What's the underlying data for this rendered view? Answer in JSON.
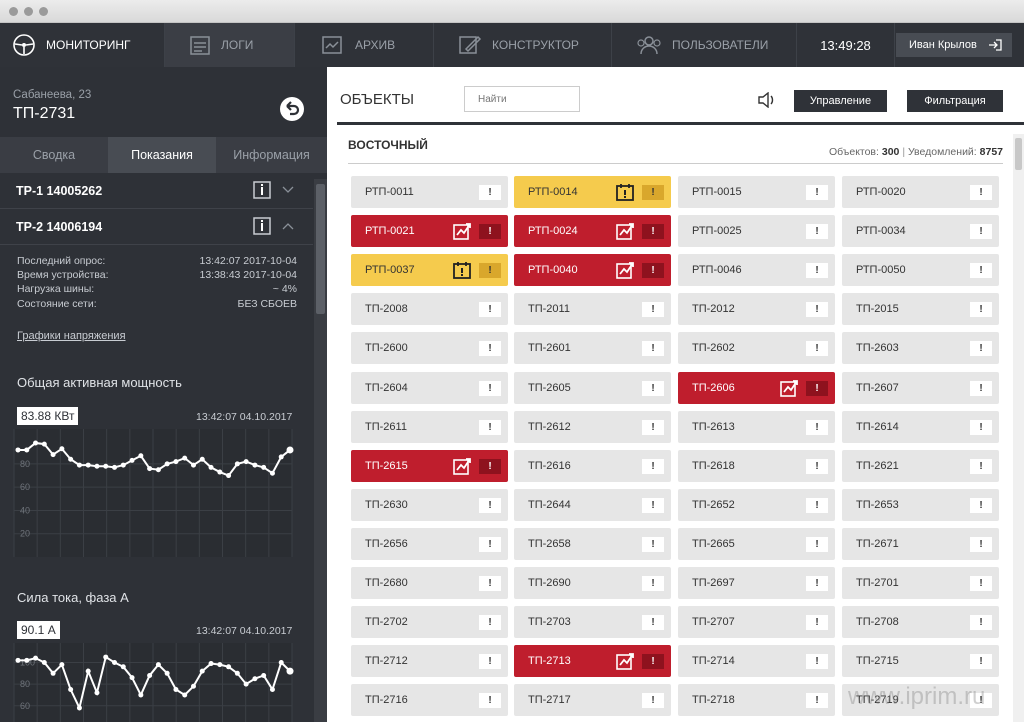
{
  "nav": {
    "monitoring": "МОНИТОРИНГ",
    "logs": "ЛОГИ",
    "archive": "АРХИВ",
    "constructor": "КОНСТРУКТОР",
    "users": "ПОЛЬЗОВАТЕЛИ",
    "time": "13:49:28",
    "user": "Иван Крылов"
  },
  "sidebar": {
    "address": "Сабанеева, 23",
    "tp": "ТП-2731",
    "tabs": [
      "Сводка",
      "Показания",
      "Информация"
    ],
    "tp1": "ТР-1 14005262",
    "tp2": "ТР-2 14006194",
    "info": [
      {
        "k": "Последний опрос:",
        "v": "13:42:07 2017-10-04"
      },
      {
        "k": "Время устройства:",
        "v": "13:38:43 2017-10-04"
      },
      {
        "k": "Нагрузка шины:",
        "v": "~ 4%"
      },
      {
        "k": "Состояние сети:",
        "v": "БЕЗ СБОЕВ"
      }
    ],
    "voltage_link": "Графики напряжения",
    "charts": [
      {
        "title": "Общая активная мощность",
        "value": "83.88 КВт",
        "time": "13:42:07 04.10.2017",
        "yticks": [
          "80",
          "60",
          "40",
          "20"
        ],
        "y": [
          92,
          92,
          98,
          97,
          88,
          93,
          84,
          79,
          79,
          78,
          78,
          77,
          79,
          83,
          87,
          76,
          75,
          80,
          82,
          85,
          79,
          84,
          77,
          73,
          70,
          80,
          82,
          79,
          77,
          72,
          86,
          92
        ]
      },
      {
        "title": "Сила тока, фаза А",
        "value": "90.1 А",
        "time": "13:42:07 04.10.2017",
        "yticks": [
          "100",
          "80",
          "60"
        ],
        "y": [
          102,
          102,
          104,
          100,
          90,
          98,
          75,
          58,
          92,
          72,
          105,
          100,
          96,
          86,
          70,
          88,
          98,
          90,
          75,
          70,
          78,
          92,
          99,
          98,
          96,
          90,
          80,
          85,
          88,
          75,
          100,
          92
        ]
      }
    ]
  },
  "main": {
    "title": "ОБЪЕКТЫ",
    "search_placeholder": "Найти",
    "btn_manage": "Управление",
    "btn_filter": "Фильтрация",
    "section": "ВОСТОЧНЫЙ",
    "objects_label": "Объектов:",
    "objects_count": "300",
    "notif_label": "Уведомлений:",
    "notif_count": "8757",
    "cells": [
      [
        "РТП-0011",
        "n"
      ],
      [
        "РТП-0014",
        "y"
      ],
      [
        "РТП-0015",
        "n"
      ],
      [
        "РТП-0020",
        "n"
      ],
      [
        "РТП-0021",
        "r"
      ],
      [
        "РТП-0024",
        "r"
      ],
      [
        "РТП-0025",
        "n"
      ],
      [
        "РТП-0034",
        "n"
      ],
      [
        "РТП-0037",
        "y"
      ],
      [
        "РТП-0040",
        "r"
      ],
      [
        "РТП-0046",
        "n"
      ],
      [
        "РТП-0050",
        "n"
      ],
      [
        "ТП-2008",
        "n"
      ],
      [
        "ТП-2011",
        "n"
      ],
      [
        "ТП-2012",
        "n"
      ],
      [
        "ТП-2015",
        "n"
      ],
      [
        "ТП-2600",
        "n"
      ],
      [
        "ТП-2601",
        "n"
      ],
      [
        "ТП-2602",
        "n"
      ],
      [
        "ТП-2603",
        "n"
      ],
      [
        "ТП-2604",
        "n"
      ],
      [
        "ТП-2605",
        "n"
      ],
      [
        "ТП-2606",
        "r"
      ],
      [
        "ТП-2607",
        "n"
      ],
      [
        "ТП-2611",
        "n"
      ],
      [
        "ТП-2612",
        "n"
      ],
      [
        "ТП-2613",
        "n"
      ],
      [
        "ТП-2614",
        "n"
      ],
      [
        "ТП-2615",
        "r"
      ],
      [
        "ТП-2616",
        "n"
      ],
      [
        "ТП-2618",
        "n"
      ],
      [
        "ТП-2621",
        "n"
      ],
      [
        "ТП-2630",
        "n"
      ],
      [
        "ТП-2644",
        "n"
      ],
      [
        "ТП-2652",
        "n"
      ],
      [
        "ТП-2653",
        "n"
      ],
      [
        "ТП-2656",
        "n"
      ],
      [
        "ТП-2658",
        "n"
      ],
      [
        "ТП-2665",
        "n"
      ],
      [
        "ТП-2671",
        "n"
      ],
      [
        "ТП-2680",
        "n"
      ],
      [
        "ТП-2690",
        "n"
      ],
      [
        "ТП-2697",
        "n"
      ],
      [
        "ТП-2701",
        "n"
      ],
      [
        "ТП-2702",
        "n"
      ],
      [
        "ТП-2703",
        "n"
      ],
      [
        "ТП-2707",
        "n"
      ],
      [
        "ТП-2708",
        "n"
      ],
      [
        "ТП-2712",
        "n"
      ],
      [
        "ТП-2713",
        "r"
      ],
      [
        "ТП-2714",
        "n"
      ],
      [
        "ТП-2715",
        "n"
      ],
      [
        "ТП-2716",
        "n"
      ],
      [
        "ТП-2717",
        "n"
      ],
      [
        "ТП-2718",
        "n"
      ],
      [
        "ТП-2719",
        "n"
      ]
    ],
    "exclaim": "!"
  },
  "watermark": "www.iprim.ru"
}
